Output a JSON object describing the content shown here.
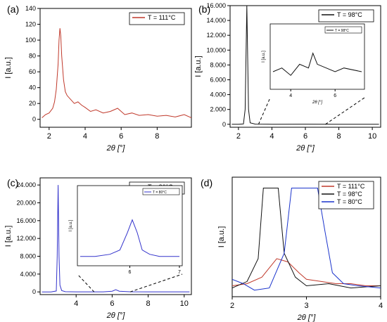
{
  "chart_data": [
    {
      "panel": "(a)",
      "type": "line",
      "xlabel": "2θ [°]",
      "ylabel": "I [a.u.]",
      "xlim": [
        1.5,
        9.9
      ],
      "ylim": [
        -10,
        140
      ],
      "xticks": [
        "2",
        "4",
        "6",
        "8"
      ],
      "yticks": [
        "0",
        "20",
        "40",
        "60",
        "80",
        "100",
        "120",
        "140"
      ],
      "legend": {
        "position": "top-right",
        "entries": [
          "T = 111°C"
        ]
      },
      "series": [
        {
          "name": "T = 111°C",
          "color": "#c0392b",
          "x": [
            1.6,
            1.8,
            2.0,
            2.2,
            2.3,
            2.4,
            2.5,
            2.55,
            2.6,
            2.65,
            2.7,
            2.8,
            2.9,
            3.0,
            3.2,
            3.4,
            3.6,
            3.8,
            4.0,
            4.3,
            4.6,
            5.0,
            5.4,
            5.8,
            6.2,
            6.6,
            7.0,
            7.5,
            8.0,
            8.5,
            9.0,
            9.5,
            9.9
          ],
          "y": [
            2,
            6,
            8,
            14,
            22,
            38,
            70,
            100,
            115,
            105,
            80,
            50,
            35,
            30,
            25,
            20,
            22,
            18,
            15,
            10,
            12,
            8,
            10,
            14,
            6,
            8,
            5,
            6,
            4,
            5,
            3,
            6,
            2
          ]
        }
      ]
    },
    {
      "panel": "(b)",
      "type": "line",
      "xlabel": "2θ [°]",
      "ylabel": "I [a.u.]",
      "xlim": [
        1.5,
        10.5
      ],
      "ylim": [
        -400,
        16000
      ],
      "xticks": [
        "2",
        "4",
        "6",
        "8",
        "10"
      ],
      "yticks": [
        "0",
        "2.000",
        "4.000",
        "6.000",
        "8.000",
        "10.000",
        "12.000",
        "14.000",
        "16.000"
      ],
      "legend": {
        "position": "top-right",
        "entries": [
          "T = 98°C"
        ]
      },
      "series": [
        {
          "name": "T = 98°C",
          "color": "#111111",
          "x": [
            1.6,
            2.0,
            2.3,
            2.4,
            2.45,
            2.5,
            2.55,
            2.6,
            2.7,
            3.0,
            4.0,
            6.0,
            8.0,
            10.4
          ],
          "y": [
            0,
            0,
            50,
            2000,
            9000,
            16000,
            9000,
            2000,
            200,
            30,
            10,
            15,
            10,
            10
          ]
        }
      ],
      "inset": {
        "xticks": [
          "4",
          "6"
        ],
        "ylabel": "I [a.u.]",
        "xlabel": "2θ [°]",
        "xlim": [
          3.2,
          7.2
        ],
        "legend": "T = 98°C",
        "x": [
          3.2,
          3.6,
          4.0,
          4.4,
          4.8,
          5.0,
          5.2,
          5.6,
          6.0,
          6.4,
          7.2
        ],
        "y": [
          4,
          5,
          3,
          6,
          5,
          9,
          6,
          5,
          4,
          5,
          4
        ]
      }
    },
    {
      "panel": "(c)",
      "type": "line",
      "xlabel": "2θ [°]",
      "ylabel": "I [a.u.]",
      "xlim": [
        2.0,
        10.4
      ],
      "ylim": [
        -600,
        25600
      ],
      "xticks": [
        "4",
        "6",
        "8",
        "10"
      ],
      "yticks": [
        "0",
        "4.000",
        "8.000",
        "12.000",
        "16.000",
        "20.000",
        "24.000"
      ],
      "legend": {
        "position": "top-right",
        "entries": [
          "T = 80°C"
        ]
      },
      "series": [
        {
          "name": "T = 80°C",
          "color": "#3333cc",
          "x": [
            2.1,
            2.6,
            2.9,
            2.95,
            3.0,
            3.05,
            3.1,
            3.2,
            3.4,
            4.0,
            5.5,
            6.0,
            6.2,
            6.4,
            7.0,
            8.0,
            9.0,
            10.3
          ],
          "y": [
            0,
            0,
            200,
            8000,
            24000,
            8000,
            1500,
            300,
            50,
            20,
            20,
            150,
            500,
            150,
            30,
            20,
            20,
            20
          ]
        }
      ],
      "inset": {
        "xticks": [
          "6",
          "7"
        ],
        "ylabel": "I [a.u.]",
        "xlim": [
          5.0,
          7.0
        ],
        "legend": "T = 80°C",
        "x": [
          5.0,
          5.3,
          5.6,
          5.8,
          5.95,
          6.05,
          6.15,
          6.25,
          6.4,
          6.6,
          7.0
        ],
        "y": [
          3,
          3,
          4,
          6,
          14,
          20,
          14,
          6,
          4,
          3,
          3
        ]
      }
    },
    {
      "panel": "(d)",
      "type": "line",
      "xlabel": "2θ [°]",
      "ylabel": "I [a.u.]",
      "xlim": [
        2,
        4
      ],
      "xticks": [
        "2",
        "3",
        "4"
      ],
      "legend": {
        "position": "top-right",
        "entries": [
          "T = 111°C",
          "T = 98°C",
          "T = 80°C"
        ]
      },
      "series": [
        {
          "name": "T = 111°C",
          "color": "#c0392b",
          "x": [
            2.0,
            2.2,
            2.4,
            2.6,
            2.75,
            2.9,
            3.0,
            3.2,
            3.4,
            3.6,
            3.8,
            4.0
          ],
          "y": [
            10,
            12,
            18,
            35,
            32,
            22,
            16,
            14,
            12,
            12,
            10,
            10
          ]
        },
        {
          "name": "T = 98°C",
          "color": "#111111",
          "x": [
            2.0,
            2.2,
            2.35,
            2.42,
            2.5,
            2.62,
            2.7,
            2.85,
            3.0,
            3.3,
            3.6,
            4.0
          ],
          "y": [
            8,
            14,
            35,
            100,
            100,
            100,
            40,
            18,
            10,
            12,
            8,
            10
          ]
        },
        {
          "name": "T = 80°C",
          "color": "#1a33cc",
          "x": [
            2.0,
            2.15,
            2.3,
            2.5,
            2.7,
            2.8,
            2.9,
            3.0,
            3.15,
            3.25,
            3.35,
            3.5,
            3.7,
            4.0
          ],
          "y": [
            16,
            12,
            6,
            8,
            40,
            100,
            100,
            100,
            100,
            60,
            22,
            12,
            10,
            8
          ]
        }
      ]
    }
  ]
}
